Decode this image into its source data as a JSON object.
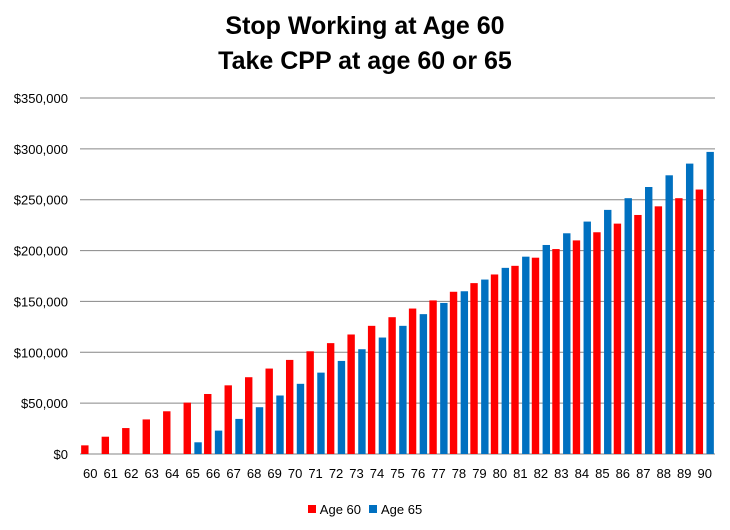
{
  "chart_data": {
    "type": "bar",
    "title": "Stop Working at Age 60",
    "subtitle": "Take CPP at age 60 or 65",
    "xlabel": "",
    "ylabel": "",
    "ylim": [
      0,
      350000
    ],
    "y_ticks": [
      0,
      50000,
      100000,
      150000,
      200000,
      250000,
      300000,
      350000
    ],
    "y_tick_labels": [
      "$0",
      "$50,000",
      "$100,000",
      "$150,000",
      "$200,000",
      "$250,000",
      "$300,000",
      "$350,000"
    ],
    "grid": true,
    "legend_position": "bottom",
    "categories": [
      "60",
      "61",
      "62",
      "63",
      "64",
      "65",
      "66",
      "67",
      "68",
      "69",
      "70",
      "71",
      "72",
      "73",
      "74",
      "75",
      "76",
      "77",
      "78",
      "79",
      "80",
      "81",
      "82",
      "83",
      "84",
      "85",
      "86",
      "87",
      "88",
      "89",
      "90"
    ],
    "series": [
      {
        "name": "Age 60",
        "color": "#ff0000",
        "values": [
          8500,
          17000,
          25500,
          34000,
          42000,
          50500,
          59000,
          67500,
          75500,
          84000,
          92500,
          101000,
          109000,
          117500,
          126000,
          134500,
          143000,
          151000,
          159500,
          168000,
          176500,
          185000,
          193000,
          201500,
          210000,
          218000,
          226500,
          235000,
          243500,
          251500,
          260000
        ]
      },
      {
        "name": "Age 65",
        "color": "#0070c0",
        "values": [
          0,
          0,
          0,
          0,
          0,
          11500,
          23000,
          34500,
          46000,
          57500,
          69000,
          80000,
          91500,
          103000,
          114500,
          126000,
          137500,
          148500,
          160000,
          171500,
          183000,
          194000,
          205500,
          217000,
          228500,
          240000,
          251500,
          262500,
          274000,
          285500,
          297000
        ]
      }
    ]
  }
}
